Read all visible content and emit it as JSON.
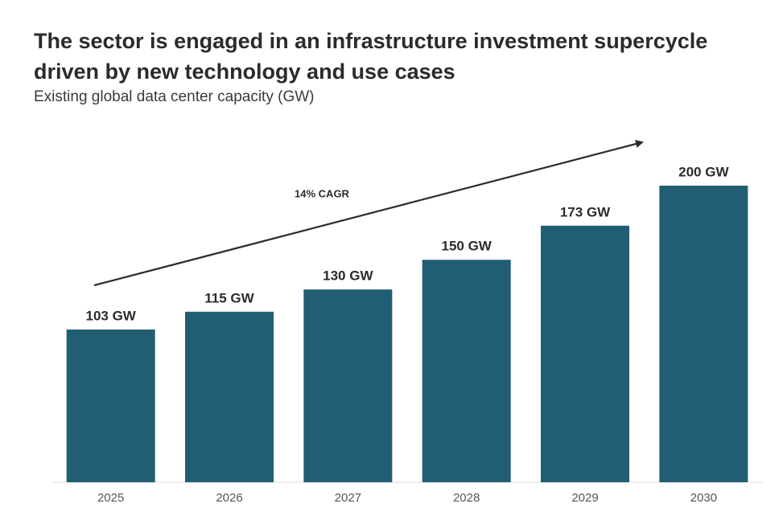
{
  "chart_data": {
    "type": "bar",
    "title": "The sector is engaged in an infrastructure investment supercycle driven by new technology and use cases",
    "subtitle": "Existing global data center capacity (GW)",
    "annotation": "14% CAGR",
    "categories": [
      "2025",
      "2026",
      "2027",
      "2028",
      "2029",
      "2030"
    ],
    "values": [
      103,
      115,
      130,
      150,
      173,
      200
    ],
    "value_labels": [
      "103 GW",
      "115 GW",
      "130 GW",
      "150 GW",
      "173 GW",
      "200 GW"
    ],
    "color": "#215e74"
  }
}
